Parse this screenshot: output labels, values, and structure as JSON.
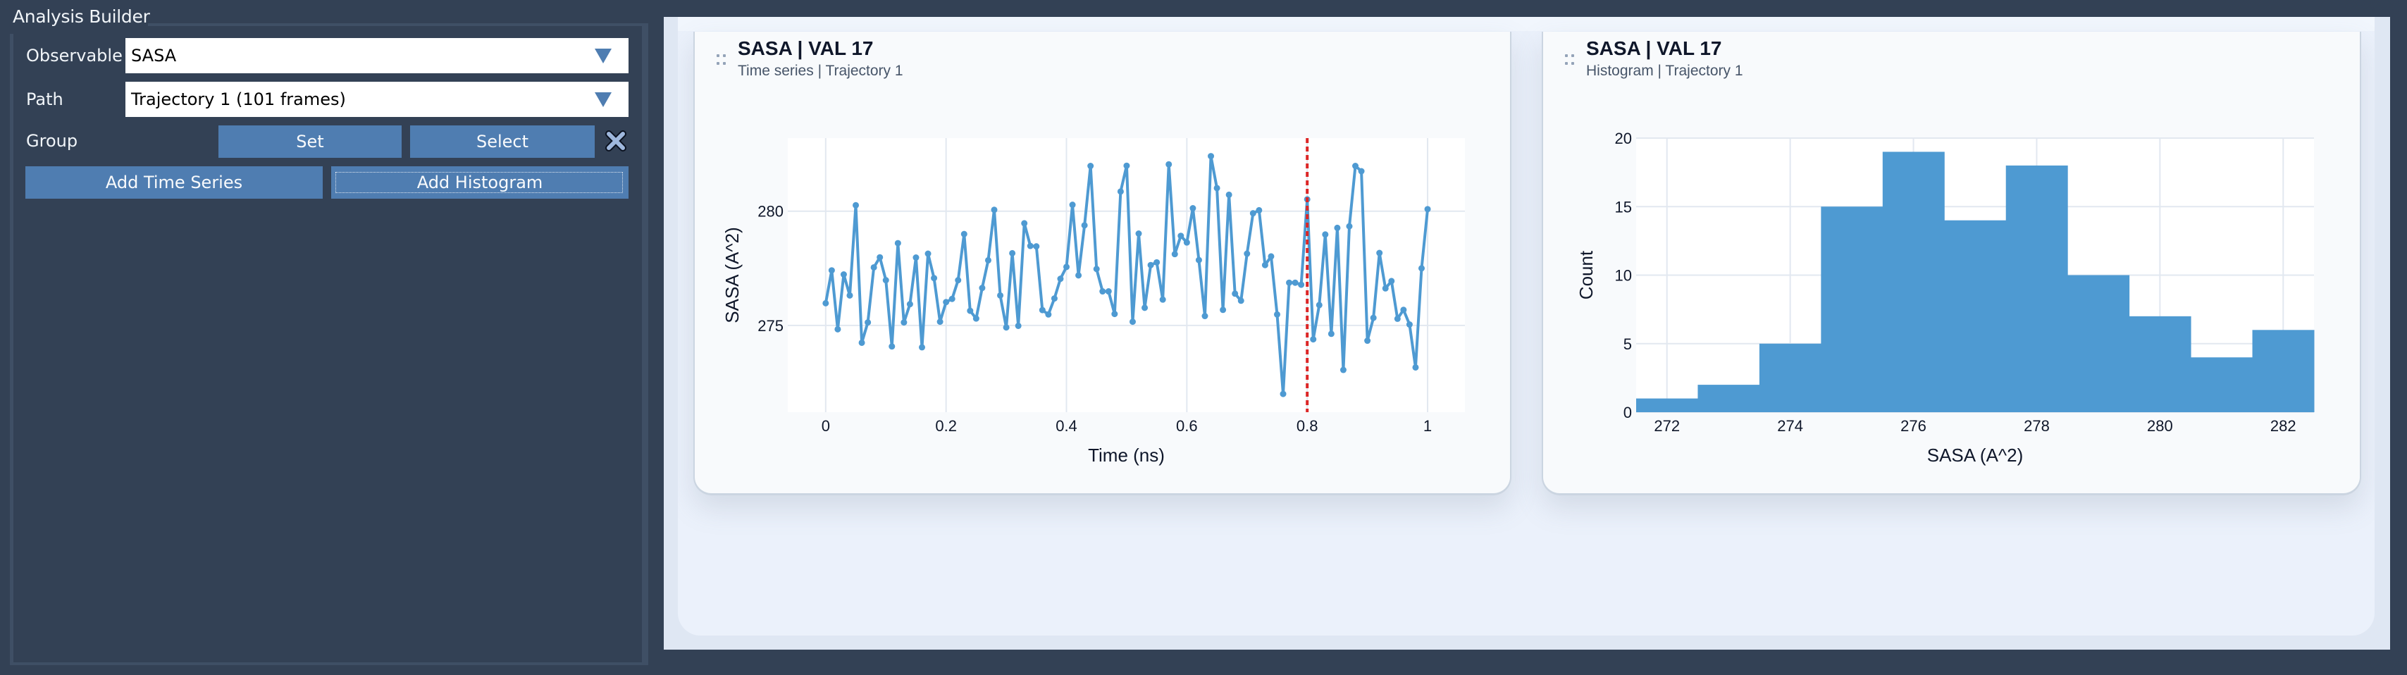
{
  "left_panel": {
    "title": "Analysis Builder",
    "observable": {
      "label": "Observable",
      "value": "SASA"
    },
    "path": {
      "label": "Path",
      "value": "Trajectory 1 (101 frames)"
    },
    "group": {
      "label": "Group",
      "set_label": "Set",
      "select_label": "Select",
      "clear_icon": "close-x-icon"
    },
    "add_time_series_label": "Add Time Series",
    "add_histogram_label": "Add Histogram"
  },
  "cards": [
    {
      "title": "SASA | VAL 17",
      "subtitle": "Time series | Trajectory 1",
      "handle_icon": "drag-handle-icon"
    },
    {
      "title": "SASA | VAL 17",
      "subtitle": "Histogram | Trajectory 1",
      "handle_icon": "drag-handle-icon"
    }
  ],
  "colors": {
    "series": "#4e9ad2",
    "marker_line": "#dc2626",
    "grid": "#e2e8f0",
    "button": "#4f7db1",
    "panel_bg": "#334155"
  },
  "chart_data": [
    {
      "type": "line",
      "title": "SASA | VAL 17",
      "subtitle": "Time series | Trajectory 1",
      "xlabel": "Time (ns)",
      "ylabel": "SASA (A^2)",
      "xlim": [
        -0.063,
        1.062
      ],
      "ylim": [
        271.2,
        283.2
      ],
      "xticks": [
        0,
        0.2,
        0.4,
        0.6,
        0.8,
        1
      ],
      "xtick_labels": [
        "0",
        "0.2",
        "0.4",
        "0.6",
        "0.8",
        "1"
      ],
      "yticks": [
        275,
        280
      ],
      "ytick_labels": [
        "275",
        "280"
      ],
      "grid": true,
      "legend": null,
      "annotations": [
        {
          "type": "vline",
          "x": 0.8,
          "style": "dashed",
          "color": "#dc2626"
        }
      ],
      "x_step": 0.01,
      "values": [
        275.97,
        277.41,
        274.83,
        277.23,
        276.31,
        280.26,
        274.24,
        275.13,
        277.54,
        277.98,
        276.98,
        274.08,
        278.6,
        275.13,
        275.93,
        277.97,
        274.04,
        278.14,
        277.07,
        275.16,
        276.02,
        276.16,
        276.98,
        279.0,
        275.64,
        275.3,
        276.64,
        277.85,
        280.06,
        276.31,
        274.91,
        278.16,
        274.98,
        279.47,
        278.48,
        278.46,
        275.67,
        275.48,
        276.18,
        277.04,
        277.56,
        280.28,
        277.19,
        279.38,
        281.98,
        277.47,
        276.49,
        276.49,
        275.5,
        280.86,
        281.99,
        275.16,
        279.02,
        275.77,
        277.64,
        277.76,
        276.13,
        282.05,
        278.12,
        278.92,
        278.63,
        280.13,
        277.86,
        275.41,
        282.41,
        281.01,
        275.68,
        280.72,
        276.39,
        276.08,
        278.14,
        279.91,
        280.04,
        277.64,
        278.02,
        275.48,
        272.0,
        276.87,
        276.87,
        276.78,
        280.52,
        274.39,
        275.89,
        278.98,
        274.63,
        279.27,
        273.05,
        279.34,
        281.98,
        281.75,
        274.33,
        275.33,
        278.17,
        276.62,
        276.94,
        275.29,
        275.68,
        275.04,
        273.16,
        277.5,
        280.09
      ]
    },
    {
      "type": "bar",
      "title": "SASA | VAL 17",
      "subtitle": "Histogram | Trajectory 1",
      "xlabel": "SASA (A^2)",
      "ylabel": "Count",
      "xlim": [
        271.5,
        282.5
      ],
      "ylim": [
        0,
        20
      ],
      "xticks": [
        272,
        274,
        276,
        278,
        280,
        282
      ],
      "xtick_labels": [
        "272",
        "274",
        "276",
        "278",
        "280",
        "282"
      ],
      "yticks": [
        0,
        5,
        10,
        15,
        20
      ],
      "ytick_labels": [
        "0",
        "5",
        "10",
        "15",
        "20"
      ],
      "grid": true,
      "legend": null,
      "bin_width": 1,
      "categories": [
        272,
        273,
        274,
        275,
        276,
        277,
        278,
        279,
        280,
        281,
        282
      ],
      "values": [
        1,
        2,
        5,
        15,
        19,
        14,
        18,
        10,
        7,
        4,
        6
      ]
    }
  ]
}
